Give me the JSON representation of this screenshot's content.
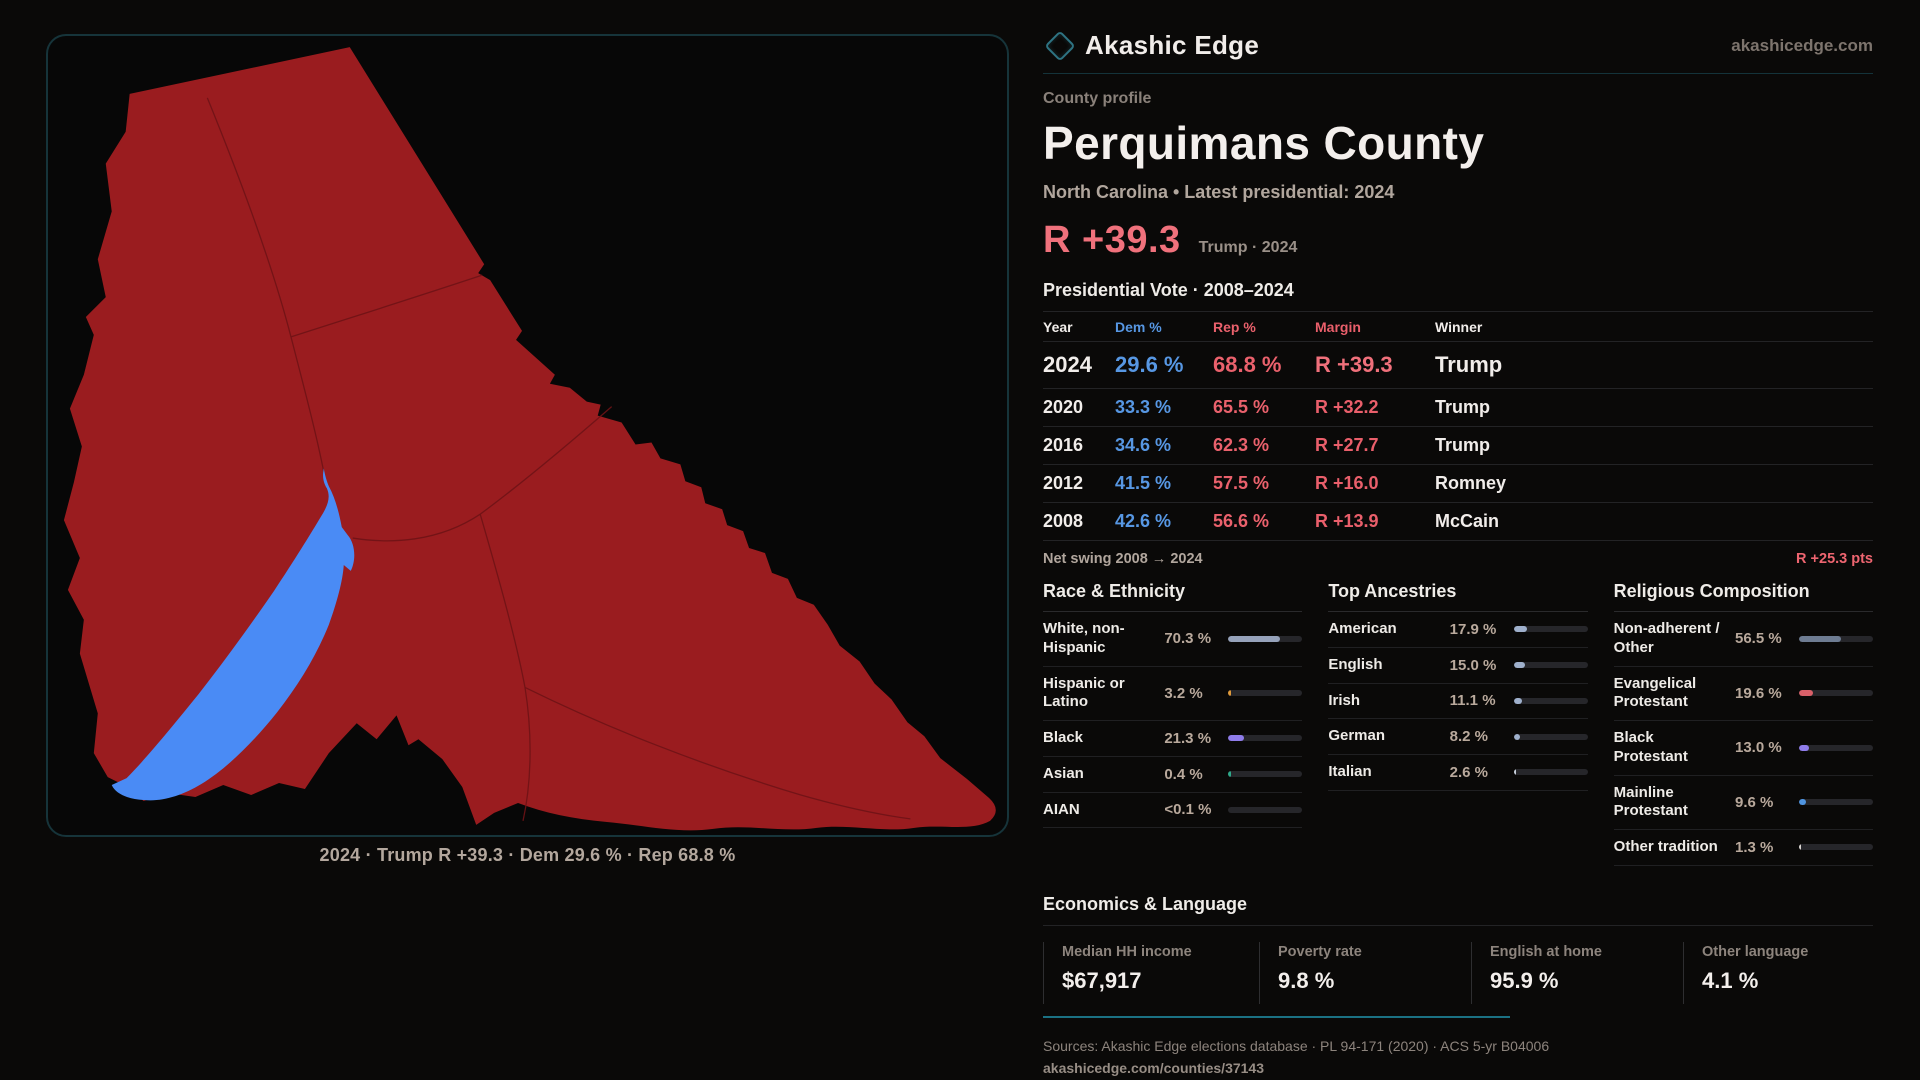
{
  "brand": {
    "name": "Akashic Edge",
    "domain": "akashicedge.com"
  },
  "header": {
    "kicker": "County profile",
    "title": "Perquimans County",
    "subtitle": "North Carolina • Latest presidential: 2024"
  },
  "headline_metric": {
    "value": "R +39.3",
    "context": "Trump · 2024"
  },
  "map": {
    "caption": "2024 · Trump R +39.3 · Dem 29.6 % · Rep 68.8 %"
  },
  "vote_table": {
    "title": "Presidential Vote · 2008–2024",
    "columns": [
      "Year",
      "Dem %",
      "Rep %",
      "Margin",
      "Winner"
    ],
    "rows": [
      {
        "year": "2024",
        "dem": "29.6 %",
        "rep": "68.8 %",
        "margin": "R +39.3",
        "winner": "Trump",
        "highlight": true
      },
      {
        "year": "2020",
        "dem": "33.3 %",
        "rep": "65.5 %",
        "margin": "R +32.2",
        "winner": "Trump",
        "highlight": false
      },
      {
        "year": "2016",
        "dem": "34.6 %",
        "rep": "62.3 %",
        "margin": "R +27.7",
        "winner": "Trump",
        "highlight": false
      },
      {
        "year": "2012",
        "dem": "41.5 %",
        "rep": "57.5 %",
        "margin": "R +16.0",
        "winner": "Romney",
        "highlight": false
      },
      {
        "year": "2008",
        "dem": "42.6 %",
        "rep": "56.6 %",
        "margin": "R +13.9",
        "winner": "McCain",
        "highlight": false
      }
    ],
    "net_swing_label": "Net swing 2008 → 2024",
    "net_swing_value": "R +25.3 pts"
  },
  "panels": [
    {
      "title": "Race & Ethnicity",
      "rows": [
        {
          "label": "White, non-Hispanic",
          "value": "70.3 %",
          "pct": 70.3,
          "color": "#96a2ba"
        },
        {
          "label": "Hispanic or Latino",
          "value": "3.2 %",
          "pct": 3.2,
          "color": "#e09a3a"
        },
        {
          "label": "Black",
          "value": "21.3 %",
          "pct": 21.3,
          "color": "#8f7cea"
        },
        {
          "label": "Asian",
          "value": "0.4 %",
          "pct": 0.4,
          "color": "#2ea98a"
        },
        {
          "label": "AIAN",
          "value": "<0.1 %",
          "pct": 0,
          "color": "#9fb0cc"
        }
      ]
    },
    {
      "title": "Top Ancestries",
      "rows": [
        {
          "label": "American",
          "value": "17.9 %",
          "pct": 17.9,
          "color": "#9fb0cc"
        },
        {
          "label": "English",
          "value": "15.0 %",
          "pct": 15.0,
          "color": "#9fb0cc"
        },
        {
          "label": "Irish",
          "value": "11.1 %",
          "pct": 11.1,
          "color": "#9fb0cc"
        },
        {
          "label": "German",
          "value": "8.2 %",
          "pct": 8.2,
          "color": "#9fb0cc"
        },
        {
          "label": "Italian",
          "value": "2.6 %",
          "pct": 2.6,
          "color": "#c8d0dc"
        }
      ]
    },
    {
      "title": "Religious Composition",
      "rows": [
        {
          "label": "Non-adherent / Other",
          "value": "56.5 %",
          "pct": 56.5,
          "color": "#6e7c92"
        },
        {
          "label": "Evangelical Protestant",
          "value": "19.6 %",
          "pct": 19.6,
          "color": "#d96069"
        },
        {
          "label": "Black Protestant",
          "value": "13.0 %",
          "pct": 13.0,
          "color": "#8f7cea"
        },
        {
          "label": "Mainline Protestant",
          "value": "9.6 %",
          "pct": 9.6,
          "color": "#4f94e0"
        },
        {
          "label": "Other tradition",
          "value": "1.3 %",
          "pct": 1.3,
          "color": "#d8d4d0"
        }
      ]
    }
  ],
  "economics": {
    "title": "Economics & Language",
    "stats": [
      {
        "label": "Median HH income",
        "value": "$67,917"
      },
      {
        "label": "Poverty rate",
        "value": "9.8 %"
      },
      {
        "label": "English at home",
        "value": "95.9 %"
      },
      {
        "label": "Other language",
        "value": "4.1 %"
      }
    ]
  },
  "footer": {
    "sources": "Sources: Akashic Edge elections database · PL 94-171 (2020) · ACS 5-yr B04006",
    "permalink": "akashicedge.com/counties/37143"
  },
  "colors": {
    "background": "#0a0908",
    "panel_border_teal": "#16343a",
    "county_red": "#9a1c1f",
    "river_blue": "#4a8bf5",
    "dem_blue": "#5797e3",
    "rep_red": "#ea616c",
    "headline_red": "#f0717c",
    "accent_teal": "#1b7183"
  }
}
